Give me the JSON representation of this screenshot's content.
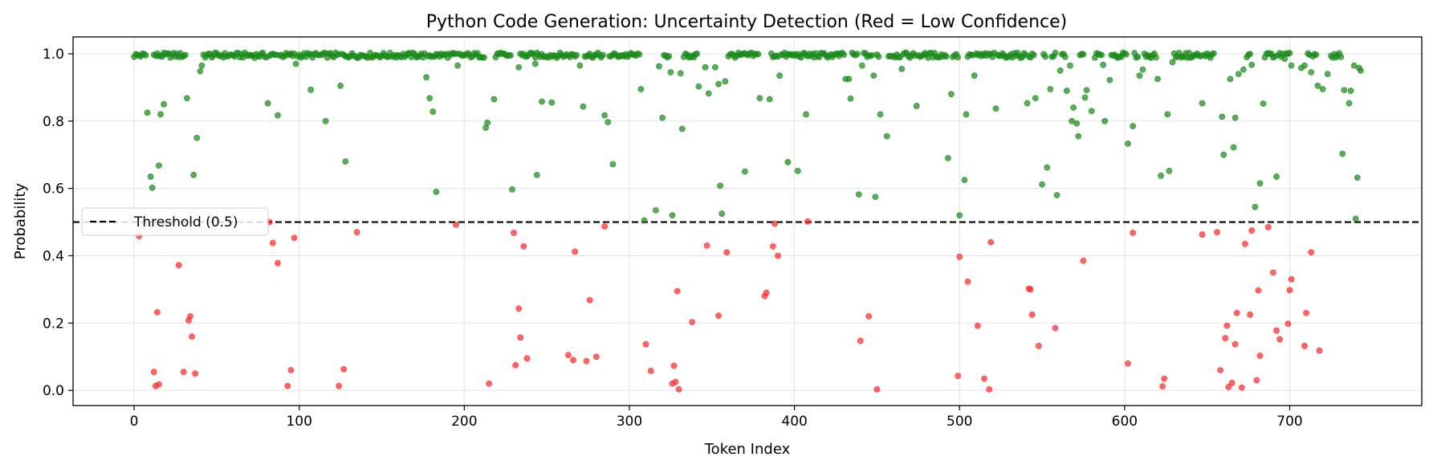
{
  "chart_data": {
    "type": "scatter",
    "title": "Python Code Generation: Uncertainty Detection (Red = Low Confidence)",
    "xlabel": "Token Index",
    "ylabel": "Probability",
    "xlim": [
      -37,
      780
    ],
    "ylim": [
      -0.045,
      1.05
    ],
    "xticks": [
      0,
      100,
      200,
      300,
      400,
      500,
      600,
      700
    ],
    "yticks": [
      0.0,
      0.2,
      0.4,
      0.6,
      0.8,
      1.0
    ],
    "xtick_labels": [
      "0",
      "100",
      "200",
      "300",
      "400",
      "500",
      "600",
      "700"
    ],
    "ytick_labels": [
      "0.0",
      "0.2",
      "0.4",
      "0.6",
      "0.8",
      "1.0"
    ],
    "grid": true,
    "threshold": {
      "value": 0.5,
      "label": "Threshold (0.5)",
      "style": "dashed",
      "color": "#000000"
    },
    "legend_position": "center-left",
    "colors": {
      "high_confidence": "#1a8a1a",
      "low_confidence": "#ff2a2a"
    },
    "total_tokens": 744,
    "high_confidence_points": [
      [
        8,
        0.825
      ],
      [
        10,
        0.635
      ],
      [
        11,
        0.602
      ],
      [
        15,
        0.668
      ],
      [
        16,
        0.82
      ],
      [
        18,
        0.85
      ],
      [
        32,
        0.868
      ],
      [
        36,
        0.64
      ],
      [
        38,
        0.75
      ],
      [
        40,
        0.948
      ],
      [
        41,
        0.965
      ],
      [
        81,
        0.853
      ],
      [
        87,
        0.817
      ],
      [
        98,
        0.97
      ],
      [
        107,
        0.893
      ],
      [
        116,
        0.8
      ],
      [
        125,
        0.905
      ],
      [
        128,
        0.68
      ],
      [
        177,
        0.93
      ],
      [
        179,
        0.868
      ],
      [
        181,
        0.828
      ],
      [
        183,
        0.59
      ],
      [
        196,
        0.965
      ],
      [
        213,
        0.78
      ],
      [
        214,
        0.795
      ],
      [
        218,
        0.865
      ],
      [
        229,
        0.597
      ],
      [
        233,
        0.96
      ],
      [
        243,
        0.97
      ],
      [
        244,
        0.64
      ],
      [
        247,
        0.858
      ],
      [
        253,
        0.855
      ],
      [
        270,
        0.965
      ],
      [
        272,
        0.843
      ],
      [
        285,
        0.817
      ],
      [
        287,
        0.797
      ],
      [
        290,
        0.672
      ],
      [
        307,
        0.895
      ],
      [
        309,
        0.505
      ],
      [
        316,
        0.535
      ],
      [
        318,
        0.963
      ],
      [
        320,
        0.81
      ],
      [
        325,
        0.945
      ],
      [
        326,
        0.52
      ],
      [
        331,
        0.942
      ],
      [
        332,
        0.777
      ],
      [
        342,
        0.903
      ],
      [
        346,
        0.96
      ],
      [
        348,
        0.882
      ],
      [
        352,
        0.96
      ],
      [
        354,
        0.91
      ],
      [
        355,
        0.608
      ],
      [
        356,
        0.525
      ],
      [
        358,
        0.918
      ],
      [
        370,
        0.65
      ],
      [
        379,
        0.868
      ],
      [
        385,
        0.865
      ],
      [
        391,
        0.935
      ],
      [
        396,
        0.678
      ],
      [
        402,
        0.652
      ],
      [
        407,
        0.82
      ],
      [
        431,
        0.925
      ],
      [
        433,
        0.925
      ],
      [
        434,
        0.867
      ],
      [
        439,
        0.582
      ],
      [
        441,
        0.965
      ],
      [
        448,
        0.935
      ],
      [
        449,
        0.575
      ],
      [
        452,
        0.82
      ],
      [
        456,
        0.755
      ],
      [
        465,
        0.955
      ],
      [
        474,
        0.845
      ],
      [
        493,
        0.69
      ],
      [
        495,
        0.88
      ],
      [
        500,
        0.52
      ],
      [
        503,
        0.625
      ],
      [
        504,
        0.82
      ],
      [
        509,
        0.935
      ],
      [
        522,
        0.837
      ],
      [
        541,
        0.853
      ],
      [
        546,
        0.868
      ],
      [
        550,
        0.612
      ],
      [
        553,
        0.662
      ],
      [
        555,
        0.895
      ],
      [
        559,
        0.58
      ],
      [
        561,
        0.95
      ],
      [
        565,
        0.89
      ],
      [
        567,
        0.965
      ],
      [
        568,
        0.8
      ],
      [
        569,
        0.84
      ],
      [
        571,
        0.793
      ],
      [
        572,
        0.755
      ],
      [
        576,
        0.87
      ],
      [
        577,
        0.892
      ],
      [
        580,
        0.83
      ],
      [
        587,
        0.967
      ],
      [
        588,
        0.8
      ],
      [
        591,
        0.922
      ],
      [
        602,
        0.733
      ],
      [
        605,
        0.785
      ],
      [
        609,
        0.935
      ],
      [
        611,
        0.953
      ],
      [
        620,
        0.925
      ],
      [
        622,
        0.638
      ],
      [
        626,
        0.82
      ],
      [
        627,
        0.652
      ],
      [
        629,
        0.975
      ],
      [
        647,
        0.853
      ],
      [
        659,
        0.813
      ],
      [
        660,
        0.7
      ],
      [
        664,
        0.925
      ],
      [
        666,
        0.722
      ],
      [
        667,
        0.81
      ],
      [
        669,
        0.94
      ],
      [
        672,
        0.953
      ],
      [
        677,
        0.967
      ],
      [
        679,
        0.545
      ],
      [
        682,
        0.615
      ],
      [
        684,
        0.852
      ],
      [
        692,
        0.635
      ],
      [
        697,
        0.985
      ],
      [
        701,
        0.965
      ],
      [
        707,
        0.958
      ],
      [
        709,
        0.965
      ],
      [
        713,
        0.945
      ],
      [
        717,
        0.905
      ],
      [
        720,
        0.895
      ],
      [
        723,
        0.94
      ],
      [
        732,
        0.703
      ],
      [
        733,
        0.892
      ],
      [
        736,
        0.853
      ],
      [
        737,
        0.89
      ],
      [
        739,
        0.965
      ],
      [
        740,
        0.51
      ],
      [
        741,
        0.632
      ],
      [
        742,
        0.958
      ],
      [
        743,
        0.95
      ]
    ],
    "high_confidence_near_one_ranges": [
      [
        0,
        7
      ],
      [
        12,
        31
      ],
      [
        42,
        80
      ],
      [
        82,
        86
      ],
      [
        88,
        97
      ],
      [
        99,
        124
      ],
      [
        126,
        176
      ],
      [
        178,
        195
      ],
      [
        197,
        212
      ],
      [
        219,
        228
      ],
      [
        234,
        268
      ],
      [
        273,
        284
      ],
      [
        288,
        306
      ],
      [
        321,
        324
      ],
      [
        333,
        341
      ],
      [
        360,
        378
      ],
      [
        386,
        390
      ],
      [
        392,
        430
      ],
      [
        435,
        438
      ],
      [
        442,
        447
      ],
      [
        450,
        451
      ],
      [
        457,
        464
      ],
      [
        466,
        473
      ],
      [
        475,
        492
      ],
      [
        496,
        499
      ],
      [
        505,
        508
      ],
      [
        510,
        521
      ],
      [
        523,
        540
      ],
      [
        542,
        545
      ],
      [
        551,
        552
      ],
      [
        556,
        558
      ],
      [
        562,
        564
      ],
      [
        573,
        575
      ],
      [
        582,
        586
      ],
      [
        592,
        601
      ],
      [
        606,
        608
      ],
      [
        612,
        619
      ],
      [
        630,
        646
      ],
      [
        648,
        654
      ],
      [
        674,
        676
      ],
      [
        685,
        691
      ],
      [
        693,
        696
      ],
      [
        698,
        700
      ],
      [
        711,
        712
      ],
      [
        714,
        716
      ],
      [
        725,
        731
      ]
    ],
    "low_confidence_points": [
      [
        3,
        0.458
      ],
      [
        12,
        0.055
      ],
      [
        13,
        0.013
      ],
      [
        14,
        0.232
      ],
      [
        15,
        0.018
      ],
      [
        27,
        0.372
      ],
      [
        30,
        0.055
      ],
      [
        33,
        0.208
      ],
      [
        34,
        0.22
      ],
      [
        35,
        0.16
      ],
      [
        37,
        0.05
      ],
      [
        82,
        0.5
      ],
      [
        84,
        0.438
      ],
      [
        87,
        0.378
      ],
      [
        93,
        0.013
      ],
      [
        95,
        0.06
      ],
      [
        97,
        0.453
      ],
      [
        124,
        0.013
      ],
      [
        127,
        0.063
      ],
      [
        135,
        0.47
      ],
      [
        195,
        0.492
      ],
      [
        215,
        0.02
      ],
      [
        230,
        0.468
      ],
      [
        231,
        0.075
      ],
      [
        233,
        0.243
      ],
      [
        234,
        0.157
      ],
      [
        236,
        0.428
      ],
      [
        238,
        0.095
      ],
      [
        263,
        0.105
      ],
      [
        266,
        0.09
      ],
      [
        267,
        0.412
      ],
      [
        274,
        0.087
      ],
      [
        276,
        0.268
      ],
      [
        280,
        0.1
      ],
      [
        285,
        0.487
      ],
      [
        310,
        0.137
      ],
      [
        313,
        0.058
      ],
      [
        326,
        0.02
      ],
      [
        327,
        0.073
      ],
      [
        328,
        0.025
      ],
      [
        329,
        0.295
      ],
      [
        330,
        0.003
      ],
      [
        338,
        0.203
      ],
      [
        347,
        0.43
      ],
      [
        354,
        0.222
      ],
      [
        359,
        0.41
      ],
      [
        382,
        0.28
      ],
      [
        383,
        0.29
      ],
      [
        387,
        0.428
      ],
      [
        388,
        0.495
      ],
      [
        390,
        0.4
      ],
      [
        408,
        0.502
      ],
      [
        440,
        0.147
      ],
      [
        445,
        0.22
      ],
      [
        450,
        0.003
      ],
      [
        499,
        0.043
      ],
      [
        500,
        0.397
      ],
      [
        505,
        0.323
      ],
      [
        511,
        0.192
      ],
      [
        515,
        0.035
      ],
      [
        518,
        0.003
      ],
      [
        519,
        0.44
      ],
      [
        542,
        0.302
      ],
      [
        543,
        0.3
      ],
      [
        544,
        0.225
      ],
      [
        548,
        0.132
      ],
      [
        558,
        0.185
      ],
      [
        575,
        0.385
      ],
      [
        602,
        0.08
      ],
      [
        605,
        0.468
      ],
      [
        623,
        0.012
      ],
      [
        624,
        0.035
      ],
      [
        647,
        0.463
      ],
      [
        656,
        0.47
      ],
      [
        658,
        0.06
      ],
      [
        661,
        0.155
      ],
      [
        662,
        0.192
      ],
      [
        663,
        0.01
      ],
      [
        665,
        0.022
      ],
      [
        667,
        0.137
      ],
      [
        668,
        0.23
      ],
      [
        671,
        0.008
      ],
      [
        673,
        0.435
      ],
      [
        676,
        0.225
      ],
      [
        677,
        0.475
      ],
      [
        680,
        0.03
      ],
      [
        681,
        0.297
      ],
      [
        682,
        0.103
      ],
      [
        687,
        0.485
      ],
      [
        690,
        0.35
      ],
      [
        692,
        0.178
      ],
      [
        694,
        0.152
      ],
      [
        699,
        0.198
      ],
      [
        700,
        0.298
      ],
      [
        701,
        0.33
      ],
      [
        709,
        0.132
      ],
      [
        710,
        0.23
      ],
      [
        713,
        0.41
      ],
      [
        718,
        0.118
      ]
    ]
  }
}
